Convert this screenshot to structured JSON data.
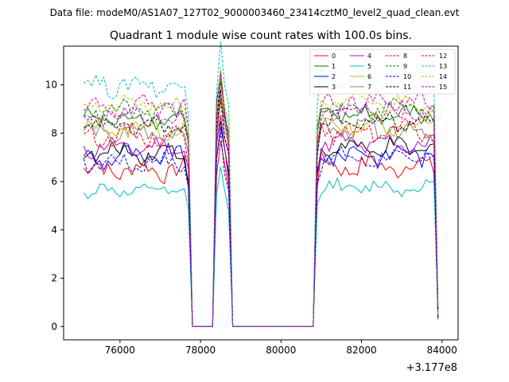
{
  "chart_data": {
    "type": "line",
    "suptitle": "Data file: modeM0/AS1A07_127T02_9000003460_23414cztM0_level2_quad_clean.evt",
    "title": "Quadrant 1 module wise count rates with 100.0s bins.",
    "xlabel": "",
    "ylabel": "",
    "x_offset_label": "+3.177e8",
    "xlim": [
      74600,
      84400
    ],
    "ylim": [
      -0.55,
      11.6
    ],
    "x_ticks": [
      76000,
      78000,
      80000,
      82000,
      84000
    ],
    "x_tick_labels": [
      "76000",
      "78000",
      "80000",
      "82000",
      "84000"
    ],
    "y_ticks": [
      0,
      2,
      4,
      6,
      8,
      10
    ],
    "y_tick_labels": [
      "0",
      "2",
      "4",
      "6",
      "8",
      "10"
    ],
    "grid": false,
    "legend_position": "upper right",
    "x_start": 75100,
    "bin": 100,
    "gaps": [
      {
        "start": 77800,
        "end": 78300,
        "value": 0
      },
      {
        "start": 78800,
        "end": 80800,
        "value": 0
      }
    ],
    "spikes": [
      {
        "x": 78500,
        "scale": 1.18
      }
    ],
    "series": [
      {
        "name": "0",
        "color": "#ff0000",
        "dash": false,
        "level": 6.5,
        "amp": 0.45
      },
      {
        "name": "1",
        "color": "#008000",
        "dash": false,
        "level": 8.6,
        "amp": 0.35
      },
      {
        "name": "2",
        "color": "#0000ff",
        "dash": false,
        "level": 7.0,
        "amp": 0.45
      },
      {
        "name": "3",
        "color": "#000000",
        "dash": false,
        "level": 7.2,
        "amp": 0.4
      },
      {
        "name": "4",
        "color": "#bf00bf",
        "dash": false,
        "level": 7.4,
        "amp": 0.4
      },
      {
        "name": "5",
        "color": "#00bfbf",
        "dash": false,
        "level": 5.6,
        "amp": 0.3
      },
      {
        "name": "6",
        "color": "#bfbf00",
        "dash": false,
        "level": 8.2,
        "amp": 0.4
      },
      {
        "name": "7",
        "color": "#808080",
        "dash": false,
        "level": 8.0,
        "amp": 0.4
      },
      {
        "name": "8",
        "color": "#ff0000",
        "dash": true,
        "level": 7.9,
        "amp": 0.4
      },
      {
        "name": "9",
        "color": "#008000",
        "dash": true,
        "level": 8.9,
        "amp": 0.4
      },
      {
        "name": "10",
        "color": "#0000ff",
        "dash": true,
        "level": 6.8,
        "amp": 0.4
      },
      {
        "name": "11",
        "color": "#000000",
        "dash": true,
        "level": 8.3,
        "amp": 0.4
      },
      {
        "name": "12",
        "color": "#bf00bf",
        "dash": true,
        "level": 9.0,
        "amp": 0.45
      },
      {
        "name": "13",
        "color": "#00bfbf",
        "dash": true,
        "level": 10.0,
        "amp": 0.45
      },
      {
        "name": "14",
        "color": "#bfbf00",
        "dash": true,
        "level": 9.1,
        "amp": 0.4
      },
      {
        "name": "15",
        "color": "#bf00bf",
        "dash": true,
        "level": 8.8,
        "amp": 0.4
      }
    ]
  }
}
